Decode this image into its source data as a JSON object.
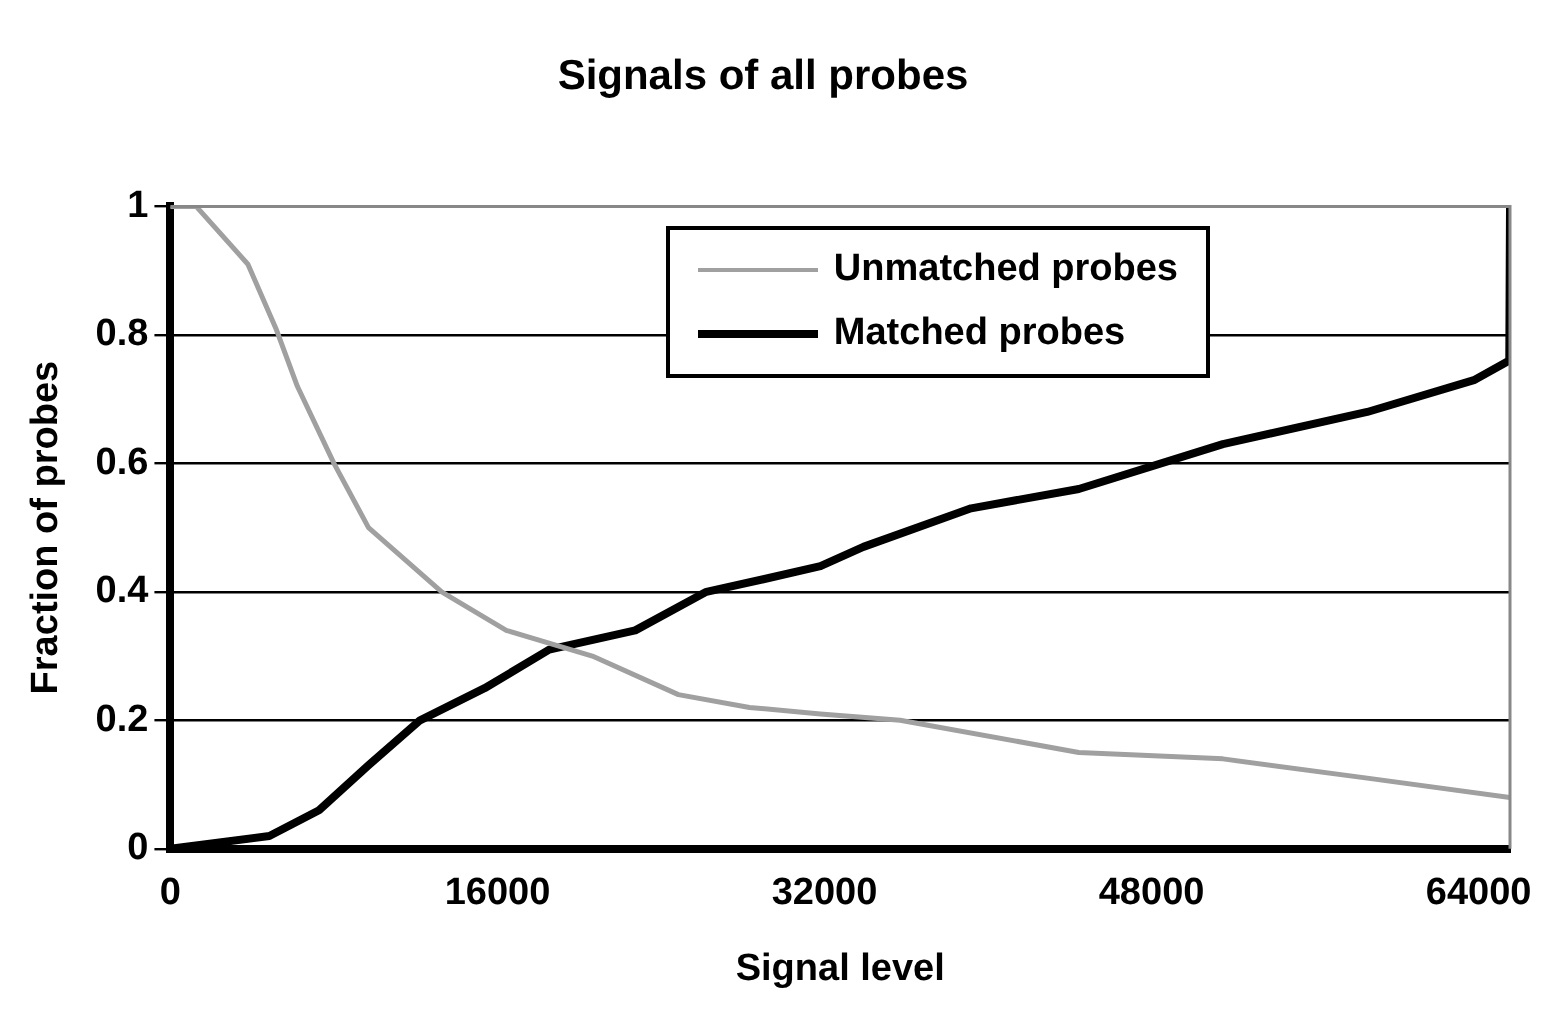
{
  "chart_data": {
    "type": "line",
    "title": "Signals of all probes",
    "xlabel": "Signal level",
    "ylabel": "Fraction of probes",
    "xlim": [
      0,
      65535
    ],
    "xticks": [
      0,
      16000,
      32000,
      48000,
      64000
    ],
    "ylim": [
      0,
      1
    ],
    "yticks": [
      0,
      0.2,
      0.4,
      0.6,
      0.8,
      1
    ],
    "grid": "y",
    "legend": "top right",
    "marker": "none",
    "line_style": "solid",
    "series": [
      {
        "name": "Unmatched probes",
        "color": "#a0a0a0",
        "x": [
          0,
          1260,
          3790,
          5160,
          6210,
          8000,
          9690,
          13270,
          16430,
          20640,
          24850,
          28330,
          31800,
          35700,
          44440,
          51490,
          58550,
          65535
        ],
        "values": [
          1,
          1,
          0.91,
          0.81,
          0.72,
          0.6,
          0.5,
          0.4,
          0.34,
          0.3,
          0.24,
          0.22,
          0.21,
          0.2,
          0.15,
          0.14,
          0.11,
          0.08
        ]
      },
      {
        "name": "Matched probes",
        "color": "#000000",
        "x": [
          0,
          4840,
          7270,
          9690,
          12210,
          15370,
          18530,
          22740,
          26220,
          29060,
          31800,
          33900,
          39170,
          44440,
          51490,
          58550,
          63810,
          65500,
          65535
        ],
        "values": [
          0,
          0.02,
          0.06,
          0.13,
          0.2,
          0.25,
          0.31,
          0.34,
          0.4,
          0.42,
          0.44,
          0.47,
          0.53,
          0.56,
          0.63,
          0.68,
          0.73,
          0.76,
          1
        ]
      }
    ]
  }
}
